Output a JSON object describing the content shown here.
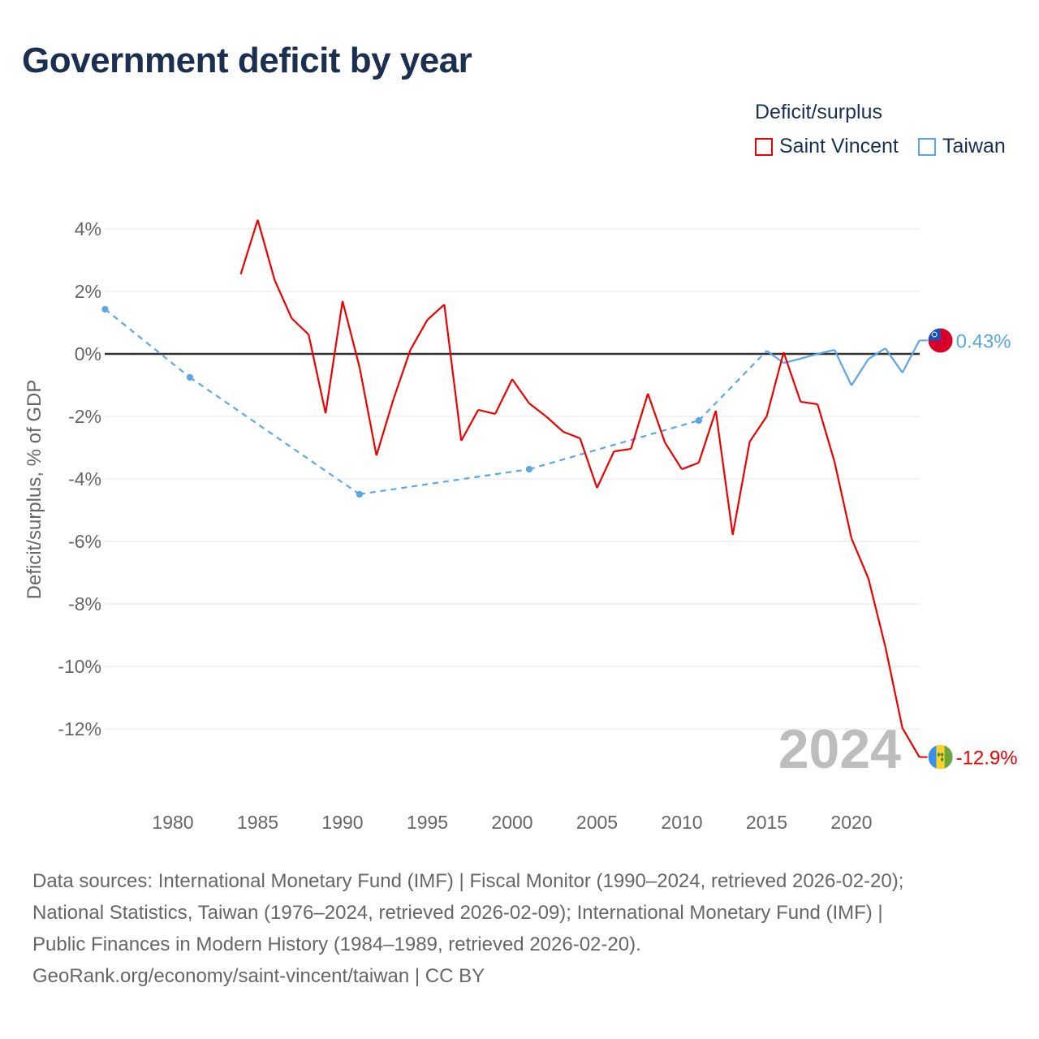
{
  "title": "Government deficit by year",
  "legend": {
    "title": "Deficit/surplus",
    "items": [
      {
        "label": "Saint Vincent",
        "color": "#ee0000"
      },
      {
        "label": "Taiwan",
        "color": "#5aa6ea"
      }
    ]
  },
  "sources": [
    "Data sources: International Monetary Fund (IMF) | Fiscal Monitor (1990–2024, retrieved 2026-02-20);",
    "National Statistics, Taiwan (1976–2024, retrieved 2026-02-09); International Monetary Fund (IMF) |",
    "Public Finances in Modern History (1984–1989, retrieved 2026-02-20).",
    "GeoRank.org/economy/saint-vincent/taiwan | CC BY"
  ],
  "chart_data": {
    "type": "line",
    "title": "Government deficit by year",
    "ylabel": "Deficit/surplus, % of GDP",
    "xlim": [
      1976,
      2024
    ],
    "ylim": [
      -13.5,
      4.5
    ],
    "yticks": [
      4,
      2,
      0,
      -2,
      -4,
      -6,
      -8,
      -10,
      -12
    ],
    "ytick_labels": [
      "4%",
      "2%",
      "0%",
      "-2%",
      "-4%",
      "-6%",
      "-8%",
      "-10%",
      "-12%"
    ],
    "xticks": [
      1980,
      1985,
      1990,
      1995,
      2000,
      2005,
      2010,
      2015,
      2020
    ],
    "year_label": "2024",
    "series": [
      {
        "name": "Saint Vincent",
        "color": "#ee0000",
        "end_label": "-12.9%",
        "flag": "saint-vincent",
        "x": [
          1984,
          1985,
          1986,
          1987,
          1988,
          1989,
          1990,
          1991,
          1992,
          1993,
          1994,
          1995,
          1996,
          1997,
          1998,
          1999,
          2000,
          2001,
          2002,
          2003,
          2004,
          2005,
          2006,
          2007,
          2008,
          2009,
          2010,
          2011,
          2012,
          2013,
          2014,
          2015,
          2016,
          2017,
          2018,
          2019,
          2020,
          2021,
          2022,
          2023,
          2024
        ],
        "y": [
          2.55,
          4.29,
          2.36,
          1.14,
          0.62,
          -1.9,
          1.69,
          -0.42,
          -3.25,
          -1.45,
          0.13,
          1.09,
          1.58,
          -2.78,
          -1.79,
          -1.92,
          -0.81,
          -1.58,
          -2.0,
          -2.49,
          -2.7,
          -4.29,
          -3.12,
          -3.04,
          -1.27,
          -2.83,
          -3.69,
          -3.48,
          -1.82,
          -5.79,
          -2.81,
          -2.0,
          0.05,
          -1.53,
          -1.61,
          -3.45,
          -5.9,
          -7.19,
          -9.38,
          -11.97,
          -12.9
        ]
      },
      {
        "name": "Taiwan",
        "color": "#5aa6ea",
        "end_label": "0.43%",
        "flag": "taiwan",
        "x": [
          1976,
          1981,
          1991,
          2001,
          2011,
          2015,
          2016,
          2017,
          2018,
          2019,
          2020,
          2021,
          2022,
          2023,
          2024
        ],
        "y": [
          1.43,
          -0.75,
          -4.49,
          -3.69,
          -2.13,
          0.1,
          -0.29,
          -0.15,
          0.0,
          0.13,
          -1.01,
          -0.16,
          0.18,
          -0.6,
          0.43
        ]
      }
    ]
  }
}
